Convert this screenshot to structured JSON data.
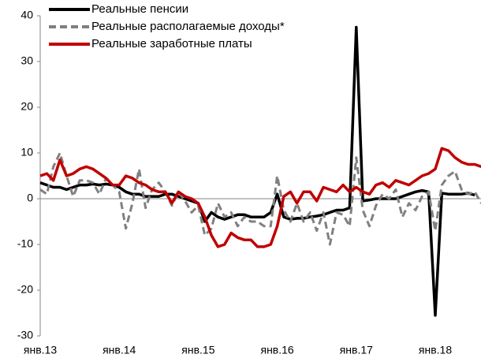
{
  "chart_data": {
    "type": "line",
    "categories": [
      "янв.13",
      null,
      null,
      null,
      null,
      null,
      null,
      null,
      null,
      null,
      null,
      null,
      "янв.14",
      null,
      null,
      null,
      null,
      null,
      null,
      null,
      null,
      null,
      null,
      null,
      "янв.15",
      null,
      null,
      null,
      null,
      null,
      null,
      null,
      null,
      null,
      null,
      null,
      "янв.16",
      null,
      null,
      null,
      null,
      null,
      null,
      null,
      null,
      null,
      null,
      null,
      "янв.17",
      null,
      null,
      null,
      null,
      null,
      null,
      null,
      null,
      null,
      null,
      null,
      "янв.18",
      null,
      null,
      null,
      null,
      null,
      null,
      null
    ],
    "series": [
      {
        "name": "Реальные пенсии",
        "color": "#000000",
        "dash": "solid",
        "values": [
          3.5,
          3,
          2.5,
          2.5,
          2,
          2.5,
          3,
          3,
          3.2,
          3,
          3.2,
          3,
          2.5,
          1.5,
          1,
          1,
          0.5,
          0.5,
          0.5,
          1,
          1,
          0.5,
          0,
          -0.5,
          -1,
          -5,
          -3,
          -4,
          -4.5,
          -4,
          -3.5,
          -3.5,
          -4,
          -4,
          -4,
          -3,
          1,
          -4,
          -4.5,
          -4.3,
          -4.3,
          -4,
          -3.8,
          -3.5,
          -3,
          -2.5,
          -2.5,
          -2,
          37.5,
          -0.5,
          -0.3,
          0,
          0,
          0,
          0,
          0.5,
          1,
          1.5,
          1.8,
          1.5,
          -25.5,
          1.2,
          1,
          1,
          1,
          1.2,
          0.8,
          null
        ]
      },
      {
        "name": "Реальные располагаемые доходы*",
        "color": "#808080",
        "dash": "dashed",
        "values": [
          2,
          1,
          7,
          10,
          5,
          0.5,
          4,
          4,
          3.5,
          1,
          4.5,
          3,
          1.5,
          -6.5,
          -1,
          6.5,
          -2,
          2,
          3.5,
          1.5,
          -1.5,
          1.5,
          -0.5,
          -3,
          -1.5,
          -8,
          -6.5,
          -1,
          -4,
          -3,
          -6,
          -4,
          -5,
          -5,
          -6,
          -6,
          5,
          -2.5,
          -5,
          -1,
          -5,
          -3,
          -7,
          -3,
          -10,
          -3,
          -3.5,
          -6,
          9,
          -2.5,
          -6,
          -1.5,
          1,
          0,
          2,
          -4,
          -1,
          -2.5,
          0.5,
          1.5,
          -7,
          3,
          5,
          6,
          2,
          1,
          1.5,
          -1
        ]
      },
      {
        "name": "Реальные заработные платы",
        "color": "#c00000",
        "dash": "solid",
        "values": [
          5,
          5.5,
          4,
          8.5,
          5,
          5.5,
          6.5,
          7,
          6.5,
          5.5,
          4.5,
          3,
          3,
          5,
          4.5,
          3.5,
          3,
          2,
          1.5,
          1.5,
          -1,
          1.5,
          0.5,
          0,
          -1,
          -4,
          -8,
          -10.5,
          -10,
          -7.5,
          -8.5,
          -9,
          -9,
          -10.5,
          -10.5,
          -10,
          -6,
          0.5,
          1.5,
          -1,
          1.5,
          1.5,
          -0.5,
          2.5,
          2,
          1.5,
          3,
          1.5,
          2.5,
          1.5,
          1,
          3,
          3.5,
          2.5,
          4,
          3.5,
          3,
          4,
          5,
          5.5,
          6.5,
          11,
          10.5,
          9,
          8,
          7.5,
          7.5,
          7
        ]
      }
    ],
    "ylim": [
      -30,
      40
    ],
    "yticks": [
      -30,
      -20,
      -10,
      0,
      10,
      20,
      30,
      40
    ],
    "grid": false,
    "legend": "top-left"
  }
}
